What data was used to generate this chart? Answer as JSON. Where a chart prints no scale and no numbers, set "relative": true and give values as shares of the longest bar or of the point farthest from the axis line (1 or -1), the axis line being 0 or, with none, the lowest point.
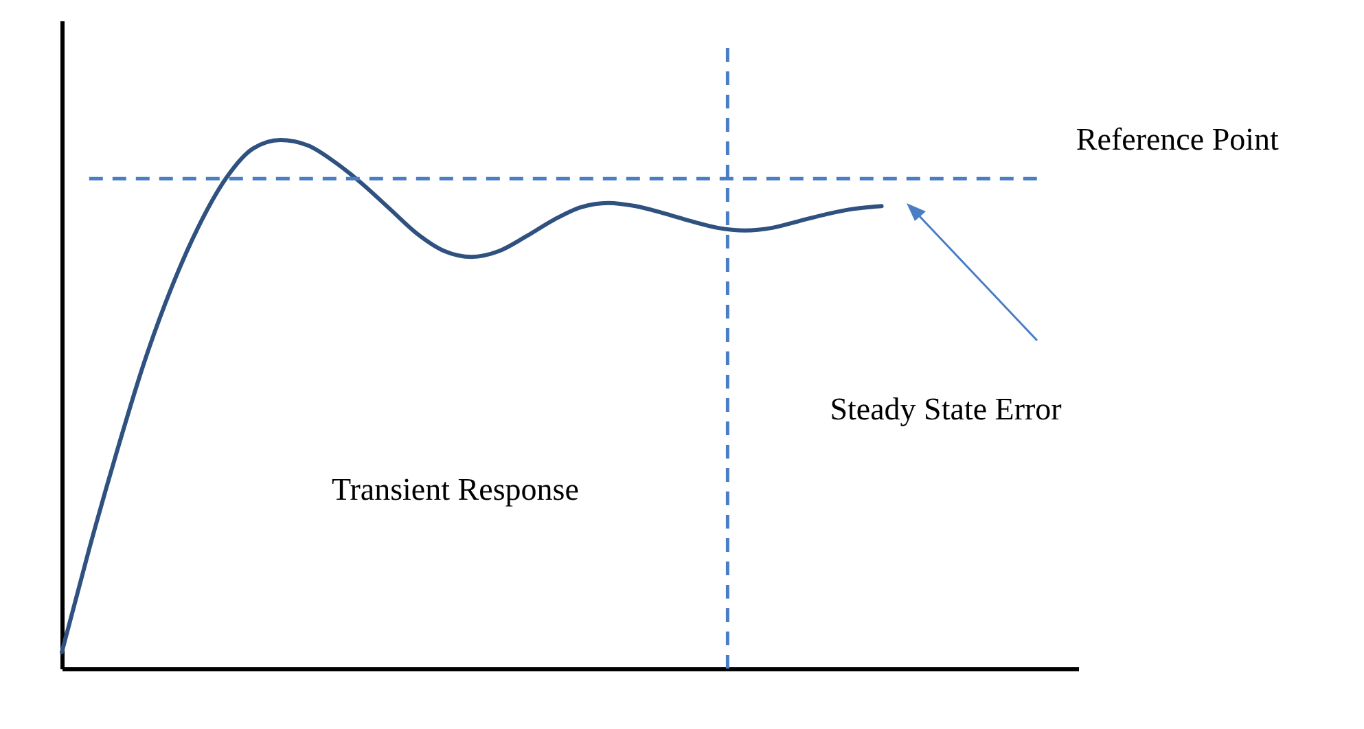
{
  "chart_data": {
    "type": "line",
    "relative": true,
    "categories": [
      null,
      null,
      null,
      null,
      null,
      null,
      null,
      null,
      null,
      null,
      null,
      null,
      null,
      null,
      null,
      null,
      null,
      null,
      null,
      null,
      null,
      null,
      null,
      null,
      null,
      null,
      null,
      null,
      null,
      null,
      null
    ],
    "series": [
      {
        "color": "#2f5180",
        "values": [
          0.031,
          0.226,
          0.408,
          0.577,
          0.719,
          0.836,
          0.927,
          0.984,
          1,
          0.99,
          0.958,
          0.917,
          0.87,
          0.823,
          0.79,
          0.779,
          0.79,
          0.818,
          0.849,
          0.873,
          0.881,
          0.875,
          0.862,
          0.847,
          0.834,
          0.829,
          0.834,
          0.847,
          0.86,
          0.87,
          0.875
        ]
      }
    ],
    "ref_lines": [
      {
        "axis": "y",
        "value": 0.927,
        "label": "Reference Point",
        "color": "#4a7ec4",
        "line_style": "dashed"
      }
    ],
    "annotations": [
      "Transient Response",
      "Steady State Error"
    ],
    "tick_labels": false,
    "grid": false,
    "marker": "none",
    "line_style": "solid"
  }
}
